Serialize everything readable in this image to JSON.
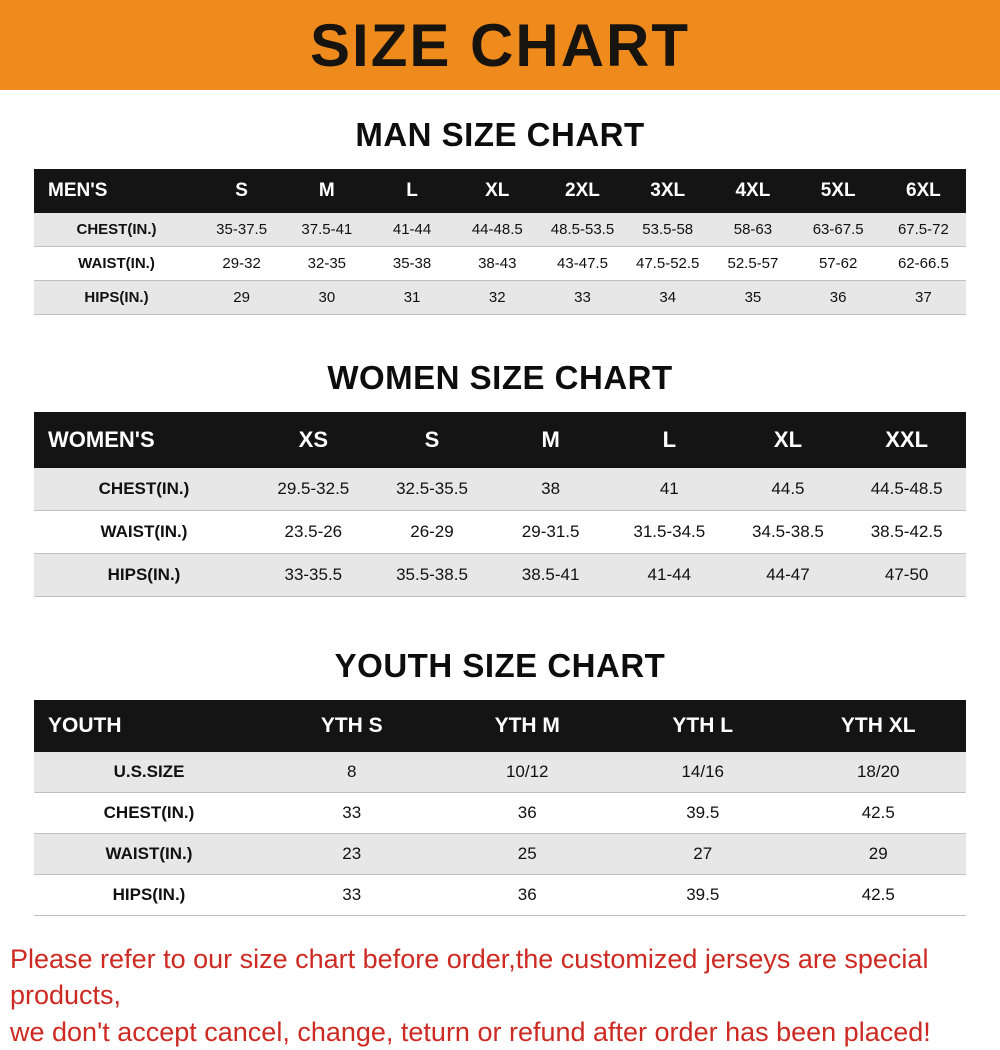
{
  "banner": {
    "title": "SIZE CHART",
    "bg_color": "#ef8a1d"
  },
  "colors": {
    "table_header_bg": "#141414",
    "row_stripe": "#e7e7e7",
    "note_text": "#cc2a22"
  },
  "sections": [
    {
      "title": "MAN SIZE CHART",
      "table": {
        "header_label": "MEN'S",
        "columns": [
          "S",
          "M",
          "L",
          "XL",
          "2XL",
          "3XL",
          "4XL",
          "5XL",
          "6XL"
        ],
        "rows": [
          {
            "label": "CHEST(IN.)",
            "values": [
              "35-37.5",
              "37.5-41",
              "41-44",
              "44-48.5",
              "48.5-53.5",
              "53.5-58",
              "58-63",
              "63-67.5",
              "67.5-72"
            ]
          },
          {
            "label": "WAIST(IN.)",
            "values": [
              "29-32",
              "32-35",
              "35-38",
              "38-43",
              "43-47.5",
              "47.5-52.5",
              "52.5-57",
              "57-62",
              "62-66.5"
            ]
          },
          {
            "label": "HIPS(IN.)",
            "values": [
              "29",
              "30",
              "31",
              "32",
              "33",
              "34",
              "35",
              "36",
              "37"
            ]
          }
        ]
      }
    },
    {
      "title": "WOMEN SIZE CHART",
      "table": {
        "header_label": "WOMEN'S",
        "columns": [
          "XS",
          "S",
          "M",
          "L",
          "XL",
          "XXL"
        ],
        "rows": [
          {
            "label": "CHEST(IN.)",
            "values": [
              "29.5-32.5",
              "32.5-35.5",
              "38",
              "41",
              "44.5",
              "44.5-48.5"
            ]
          },
          {
            "label": "WAIST(IN.)",
            "values": [
              "23.5-26",
              "26-29",
              "29-31.5",
              "31.5-34.5",
              "34.5-38.5",
              "38.5-42.5"
            ]
          },
          {
            "label": "HIPS(IN.)",
            "values": [
              "33-35.5",
              "35.5-38.5",
              "38.5-41",
              "41-44",
              "44-47",
              "47-50"
            ]
          }
        ]
      }
    },
    {
      "title": "YOUTH SIZE CHART",
      "table": {
        "header_label": "YOUTH",
        "columns": [
          "YTH S",
          "YTH M",
          "YTH L",
          "YTH XL"
        ],
        "rows": [
          {
            "label": "U.S.SIZE",
            "values": [
              "8",
              "10/12",
              "14/16",
              "18/20"
            ]
          },
          {
            "label": "CHEST(IN.)",
            "values": [
              "33",
              "36",
              "39.5",
              "42.5"
            ]
          },
          {
            "label": "WAIST(IN.)",
            "values": [
              "23",
              "25",
              "27",
              "29"
            ]
          },
          {
            "label": "HIPS(IN.)",
            "values": [
              "33",
              "36",
              "39.5",
              "42.5"
            ]
          }
        ]
      }
    }
  ],
  "note": {
    "line1": "Please refer to our size chart before order,the customized jerseys are special products,",
    "line2": "we don't accept cancel, change, teturn or refund after order has been placed!"
  }
}
